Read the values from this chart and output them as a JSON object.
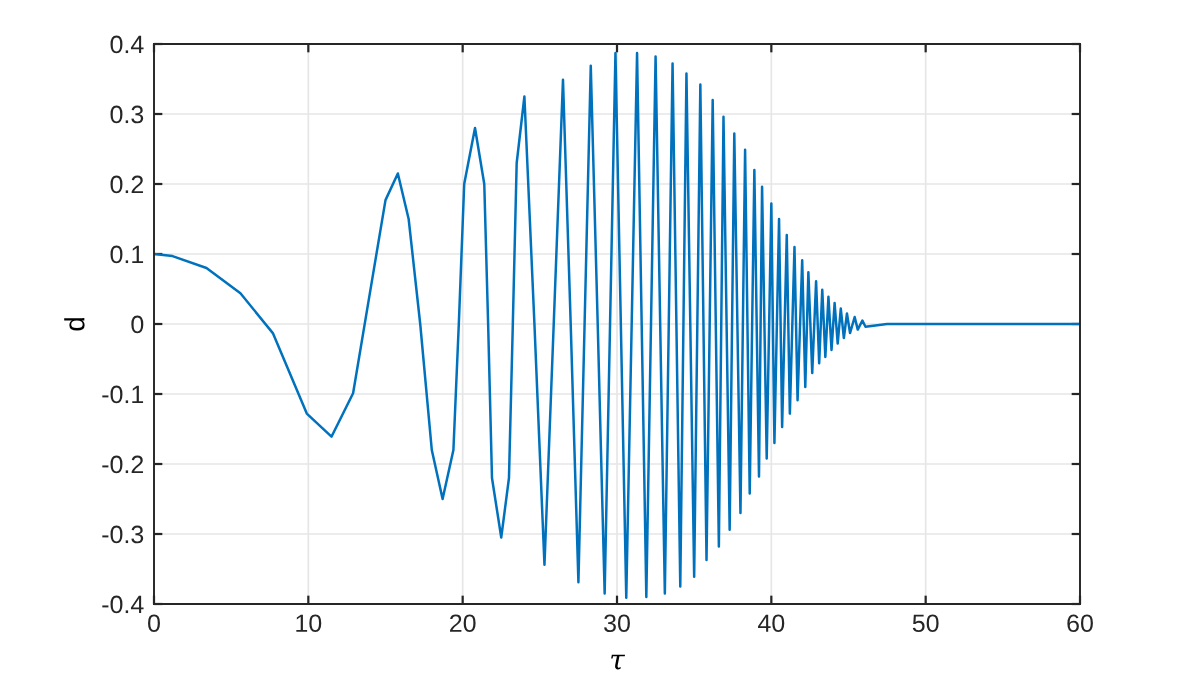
{
  "chart_data": {
    "type": "line",
    "xlabel": "τ",
    "ylabel": "d",
    "xlim": [
      0,
      60
    ],
    "ylim": [
      -0.4,
      0.4
    ],
    "xticks": [
      0,
      10,
      20,
      30,
      40,
      50,
      60
    ],
    "yticks": [
      -0.4,
      -0.3,
      -0.2,
      -0.1,
      0,
      0.1,
      0.2,
      0.3,
      0.4
    ],
    "grid": true,
    "marker": "none",
    "line_style": "solid",
    "series": [
      {
        "color": "#0072bd",
        "x": [
          0,
          1.2,
          3.4,
          5.6,
          7.7,
          9.9,
          11.5,
          12.9,
          14.2,
          15.0,
          15.8,
          16.5,
          17.25,
          18.0,
          18.7,
          19.4,
          19.75,
          20.1,
          20.8,
          21.4,
          21.65,
          21.9,
          22.5,
          23.0,
          23.25,
          23.5,
          24.0,
          24.65,
          25.3,
          25.9,
          26.5,
          27.0,
          27.5,
          27.9,
          28.3,
          28.75,
          29.2,
          29.55,
          29.9,
          30.6,
          31.3,
          31.9,
          32.5,
          33.1,
          33.6,
          34.1,
          34.5,
          35.0,
          35.4,
          35.8,
          36.2,
          36.6,
          36.9,
          37.3,
          37.6,
          38.0,
          38.3,
          38.6,
          38.9,
          39.2,
          39.4,
          39.7,
          40.0,
          40.2,
          40.5,
          40.7,
          41.0,
          41.2,
          41.5,
          41.7,
          42.0,
          42.2,
          42.4,
          42.65,
          42.9,
          43.1,
          43.3,
          43.5,
          43.7,
          43.9,
          44.1,
          44.3,
          44.5,
          44.7,
          44.9,
          45.1,
          45.4,
          45.6,
          45.9,
          46.1,
          47.5,
          60
        ],
        "values": [
          0.1,
          0.097,
          0.08,
          0.044,
          -0.013,
          -0.128,
          -0.161,
          -0.099,
          0.072,
          0.177,
          0.215,
          0.15,
          0,
          -0.18,
          -0.25,
          -0.18,
          0,
          0.2,
          0.28,
          0.2,
          0,
          -0.22,
          -0.305,
          -0.22,
          0,
          0.23,
          0.325,
          0,
          -0.344,
          0,
          0.349,
          0,
          -0.369,
          0,
          0.369,
          0,
          -0.385,
          0,
          0.387,
          -0.391,
          0.387,
          -0.39,
          0.382,
          -0.385,
          0.372,
          -0.375,
          0.358,
          -0.361,
          0.342,
          -0.337,
          0.32,
          -0.318,
          0.296,
          -0.294,
          0.272,
          -0.27,
          0.249,
          -0.242,
          0.22,
          -0.218,
          0.196,
          -0.192,
          0.172,
          -0.17,
          0.15,
          -0.147,
          0.127,
          -0.128,
          0.11,
          -0.109,
          0.091,
          -0.09,
          0.074,
          -0.07,
          0.061,
          -0.056,
          0.049,
          -0.047,
          0.039,
          -0.037,
          0.03,
          -0.028,
          0.022,
          -0.02,
          0.015,
          -0.013,
          0.01,
          -0.008,
          0.005,
          -0.004,
          0,
          0
        ]
      }
    ]
  }
}
